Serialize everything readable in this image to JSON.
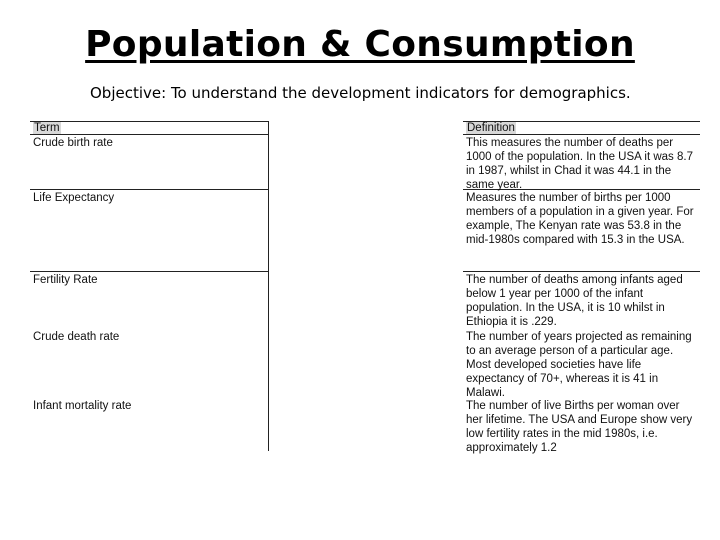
{
  "title": "Population & Consumption",
  "objective": "Objective: To understand the development indicators for demographics.",
  "terms_header": "Term",
  "definitions_header": "Definition",
  "terms": [
    "Crude birth rate",
    "Life Expectancy",
    "Fertility Rate",
    "Crude death rate",
    "Infant mortality rate"
  ],
  "definitions": [
    "This measures the number of deaths per 1000 of the population. In the USA it was 8.7 in 1987, whilst in Chad it was 44.1 in the same year.",
    "Measures the number of births per 1000 members of a population in a given year. For example, The Kenyan rate was 53.8 in the mid-1980s compared with 15.3 in the USA.",
    "The number of deaths among infants aged below 1 year per 1000 of the infant population. In the USA, it is 10 whilst in Ethiopia it is .229.",
    "The number of years projected as remaining to an average person of a particular age. Most developed societies have life expectancy of 70+, whereas it is 41 in Malawi.",
    "The number of live Births per woman over her lifetime. The USA and Europe show very low fertility rates in the mid 1980s, i.e. approximately 1.2"
  ]
}
